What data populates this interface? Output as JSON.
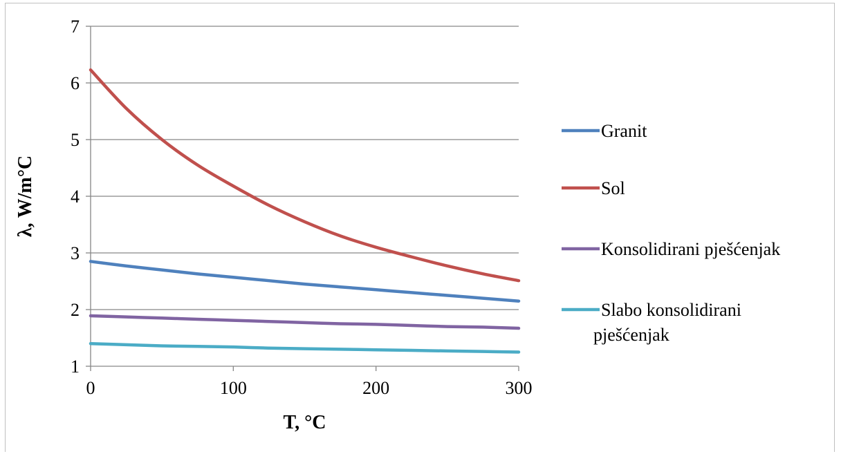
{
  "chart_data": {
    "type": "line",
    "xlabel": "T, °C",
    "ylabel": "λ, W/m°C",
    "xlim": [
      0,
      300
    ],
    "ylim": [
      1,
      7
    ],
    "xticks": [
      0,
      100,
      200,
      300
    ],
    "yticks": [
      1,
      2,
      3,
      4,
      5,
      6,
      7
    ],
    "grid": "horizontal",
    "legend_position": "right",
    "x": [
      0,
      25,
      50,
      75,
      100,
      125,
      150,
      175,
      200,
      225,
      250,
      275,
      300
    ],
    "series": [
      {
        "name": "Granit",
        "color": "#4f81bd",
        "values": [
          2.85,
          2.77,
          2.7,
          2.63,
          2.57,
          2.51,
          2.45,
          2.4,
          2.35,
          2.3,
          2.25,
          2.2,
          2.15
        ]
      },
      {
        "name": "Sol",
        "color": "#c0504d",
        "values": [
          6.23,
          5.55,
          5.0,
          4.55,
          4.18,
          3.84,
          3.55,
          3.3,
          3.1,
          2.93,
          2.77,
          2.63,
          2.51
        ]
      },
      {
        "name": "Konsolidirani pješćenjak",
        "color": "#8064a2",
        "values": [
          1.89,
          1.87,
          1.85,
          1.83,
          1.81,
          1.79,
          1.77,
          1.75,
          1.74,
          1.72,
          1.7,
          1.69,
          1.67
        ]
      },
      {
        "name": "Slabo konsolidirani pješćenjak",
        "color": "#4bacc6",
        "values": [
          1.4,
          1.38,
          1.36,
          1.35,
          1.34,
          1.32,
          1.31,
          1.3,
          1.29,
          1.28,
          1.27,
          1.26,
          1.25
        ]
      }
    ]
  }
}
